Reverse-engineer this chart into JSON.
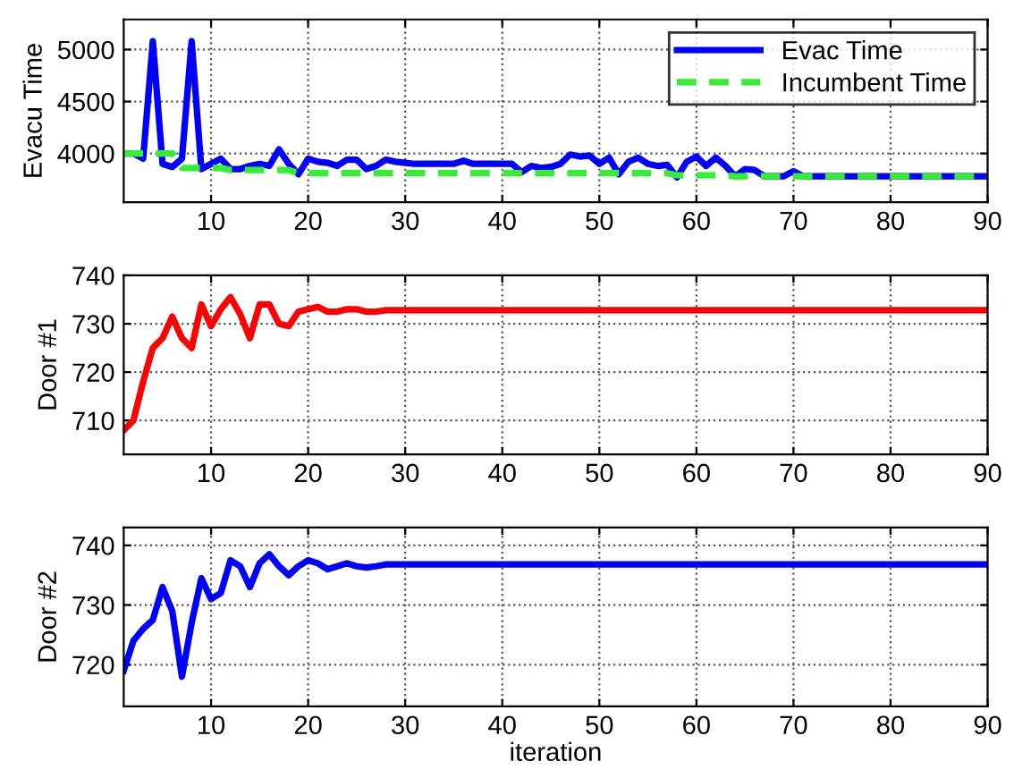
{
  "chart_data": [
    {
      "type": "line",
      "ylabel": "Evacu Time",
      "xlim": [
        1,
        90
      ],
      "xticks": [
        10,
        20,
        30,
        40,
        50,
        60,
        70,
        80,
        90
      ],
      "ylim": [
        3530,
        5290
      ],
      "yticks": [
        4000,
        4500,
        5000
      ],
      "grid": true,
      "legend": "top right",
      "marker": "none",
      "x": [
        1,
        2,
        3,
        4,
        5,
        6,
        7,
        8,
        9,
        10,
        11,
        12,
        13,
        14,
        15,
        16,
        17,
        18,
        19,
        20,
        21,
        22,
        23,
        24,
        25,
        26,
        27,
        28,
        29,
        30,
        31,
        32,
        33,
        34,
        35,
        36,
        37,
        38,
        39,
        40,
        41,
        42,
        43,
        44,
        45,
        46,
        47,
        48,
        49,
        50,
        51,
        52,
        53,
        54,
        55,
        56,
        57,
        58,
        59,
        60,
        61,
        62,
        63,
        64,
        65,
        66,
        67,
        68,
        69,
        70,
        71,
        72,
        73,
        74,
        75,
        76,
        77,
        78,
        79,
        80,
        81,
        82,
        83,
        84,
        85,
        86,
        87,
        88,
        89,
        90
      ],
      "series": [
        {
          "name": "Evac Time",
          "color": "#0000ff",
          "line_style": "solid",
          "values": [
            4000,
            4000,
            3950,
            5080,
            3900,
            3870,
            3950,
            5080,
            3850,
            3900,
            3950,
            3850,
            3850,
            3880,
            3900,
            3880,
            4040,
            3900,
            3800,
            3950,
            3920,
            3910,
            3880,
            3940,
            3940,
            3850,
            3880,
            3940,
            3920,
            3910,
            3900,
            3900,
            3900,
            3900,
            3900,
            3930,
            3900,
            3900,
            3900,
            3900,
            3900,
            3820,
            3880,
            3860,
            3870,
            3900,
            3990,
            3970,
            3980,
            3900,
            3960,
            3800,
            3920,
            3960,
            3900,
            3880,
            3890,
            3770,
            3920,
            3970,
            3880,
            3960,
            3880,
            3780,
            3850,
            3840,
            3780,
            3780,
            3780,
            3830,
            3780,
            3780,
            3780,
            3780,
            3780,
            3780,
            3780,
            3780,
            3780,
            3780,
            3780,
            3780,
            3780,
            3780,
            3780,
            3780,
            3780,
            3780,
            3780,
            3780
          ]
        },
        {
          "name": "Incumbent Time",
          "color": "#33ee33",
          "line_style": "dashed",
          "values": [
            4000,
            4000,
            4000,
            4000,
            4000,
            4000,
            3860,
            3860,
            3860,
            3860,
            3860,
            3840,
            3840,
            3840,
            3840,
            3840,
            3840,
            3840,
            3810,
            3810,
            3810,
            3810,
            3810,
            3810,
            3810,
            3810,
            3810,
            3810,
            3810,
            3810,
            3810,
            3810,
            3810,
            3810,
            3810,
            3810,
            3810,
            3810,
            3810,
            3810,
            3810,
            3810,
            3810,
            3810,
            3810,
            3810,
            3810,
            3810,
            3810,
            3810,
            3810,
            3810,
            3810,
            3810,
            3810,
            3810,
            3810,
            3790,
            3790,
            3790,
            3790,
            3790,
            3790,
            3780,
            3780,
            3780,
            3780,
            3780,
            3780,
            3780,
            3780,
            3780,
            3780,
            3780,
            3780,
            3780,
            3780,
            3780,
            3780,
            3780,
            3780,
            3780,
            3780,
            3780,
            3780,
            3780,
            3780,
            3780,
            3780,
            3780
          ]
        }
      ]
    },
    {
      "type": "line",
      "ylabel": "Door #1",
      "xlim": [
        1,
        90
      ],
      "xticks": [
        10,
        20,
        30,
        40,
        50,
        60,
        70,
        80,
        90
      ],
      "ylim": [
        703,
        740
      ],
      "yticks": [
        710,
        720,
        730,
        740
      ],
      "grid": true,
      "marker": "none",
      "x": [
        1,
        2,
        3,
        4,
        5,
        6,
        7,
        8,
        9,
        10,
        11,
        12,
        13,
        14,
        15,
        16,
        17,
        18,
        19,
        20,
        21,
        22,
        23,
        24,
        25,
        26,
        27,
        28,
        29,
        30,
        31,
        32,
        33,
        34,
        35,
        36,
        37,
        38,
        39,
        40,
        41,
        42,
        43,
        44,
        45,
        46,
        47,
        48,
        49,
        50,
        51,
        52,
        53,
        54,
        55,
        56,
        57,
        58,
        59,
        60,
        61,
        62,
        63,
        64,
        65,
        66,
        67,
        68,
        69,
        70,
        71,
        72,
        73,
        74,
        75,
        76,
        77,
        78,
        79,
        80,
        81,
        82,
        83,
        84,
        85,
        86,
        87,
        88,
        89,
        90
      ],
      "series": [
        {
          "color": "#ff0000",
          "line_style": "solid",
          "values": [
            708,
            710,
            718,
            725,
            727,
            731.5,
            727,
            725,
            734,
            729.5,
            733,
            735.5,
            732,
            727,
            734,
            734,
            730,
            729.5,
            732.5,
            733,
            733.5,
            732.5,
            732.5,
            733,
            733,
            732.5,
            732.5,
            732.8,
            732.8,
            732.8,
            732.8,
            732.8,
            732.8,
            732.8,
            732.8,
            732.8,
            732.8,
            732.8,
            732.8,
            732.8,
            732.8,
            732.8,
            732.8,
            732.8,
            732.8,
            732.8,
            732.8,
            732.8,
            732.8,
            732.8,
            732.8,
            732.8,
            732.8,
            732.8,
            732.8,
            732.8,
            732.8,
            732.8,
            732.8,
            732.8,
            732.8,
            732.8,
            732.8,
            732.8,
            732.8,
            732.8,
            732.8,
            732.8,
            732.8,
            732.8,
            732.8,
            732.8,
            732.8,
            732.8,
            732.8,
            732.8,
            732.8,
            732.8,
            732.8,
            732.8,
            732.8,
            732.8,
            732.8,
            732.8,
            732.8,
            732.8,
            732.8,
            732.8,
            732.8,
            732.8
          ]
        }
      ]
    },
    {
      "type": "line",
      "ylabel": "Door #2",
      "xlabel": "iteration",
      "xlim": [
        1,
        90
      ],
      "xticks": [
        10,
        20,
        30,
        40,
        50,
        60,
        70,
        80,
        90
      ],
      "ylim": [
        713,
        743
      ],
      "yticks": [
        720,
        730,
        740
      ],
      "grid": true,
      "marker": "none",
      "x": [
        1,
        2,
        3,
        4,
        5,
        6,
        7,
        8,
        9,
        10,
        11,
        12,
        13,
        14,
        15,
        16,
        17,
        18,
        19,
        20,
        21,
        22,
        23,
        24,
        25,
        26,
        27,
        28,
        29,
        30,
        31,
        32,
        33,
        34,
        35,
        36,
        37,
        38,
        39,
        40,
        41,
        42,
        43,
        44,
        45,
        46,
        47,
        48,
        49,
        50,
        51,
        52,
        53,
        54,
        55,
        56,
        57,
        58,
        59,
        60,
        61,
        62,
        63,
        64,
        65,
        66,
        67,
        68,
        69,
        70,
        71,
        72,
        73,
        74,
        75,
        76,
        77,
        78,
        79,
        80,
        81,
        82,
        83,
        84,
        85,
        86,
        87,
        88,
        89,
        90
      ],
      "series": [
        {
          "color": "#0000ff",
          "line_style": "solid",
          "values": [
            719,
            724,
            726,
            727.5,
            733,
            729,
            718,
            727,
            734.5,
            731,
            732,
            737.5,
            736.5,
            733,
            737,
            738.5,
            736.5,
            735,
            736.5,
            737.5,
            737,
            736,
            736.5,
            737,
            736.5,
            736.3,
            736.5,
            736.8,
            736.8,
            736.8,
            736.8,
            736.8,
            736.8,
            736.8,
            736.8,
            736.8,
            736.8,
            736.8,
            736.8,
            736.8,
            736.8,
            736.8,
            736.8,
            736.8,
            736.8,
            736.8,
            736.8,
            736.8,
            736.8,
            736.8,
            736.8,
            736.8,
            736.8,
            736.8,
            736.8,
            736.8,
            736.8,
            736.8,
            736.8,
            736.8,
            736.8,
            736.8,
            736.8,
            736.8,
            736.8,
            736.8,
            736.8,
            736.8,
            736.8,
            736.8,
            736.8,
            736.8,
            736.8,
            736.8,
            736.8,
            736.8,
            736.8,
            736.8,
            736.8,
            736.8,
            736.8,
            736.8,
            736.8,
            736.8,
            736.8,
            736.8,
            736.8,
            736.8,
            736.8,
            736.8
          ]
        }
      ]
    }
  ]
}
